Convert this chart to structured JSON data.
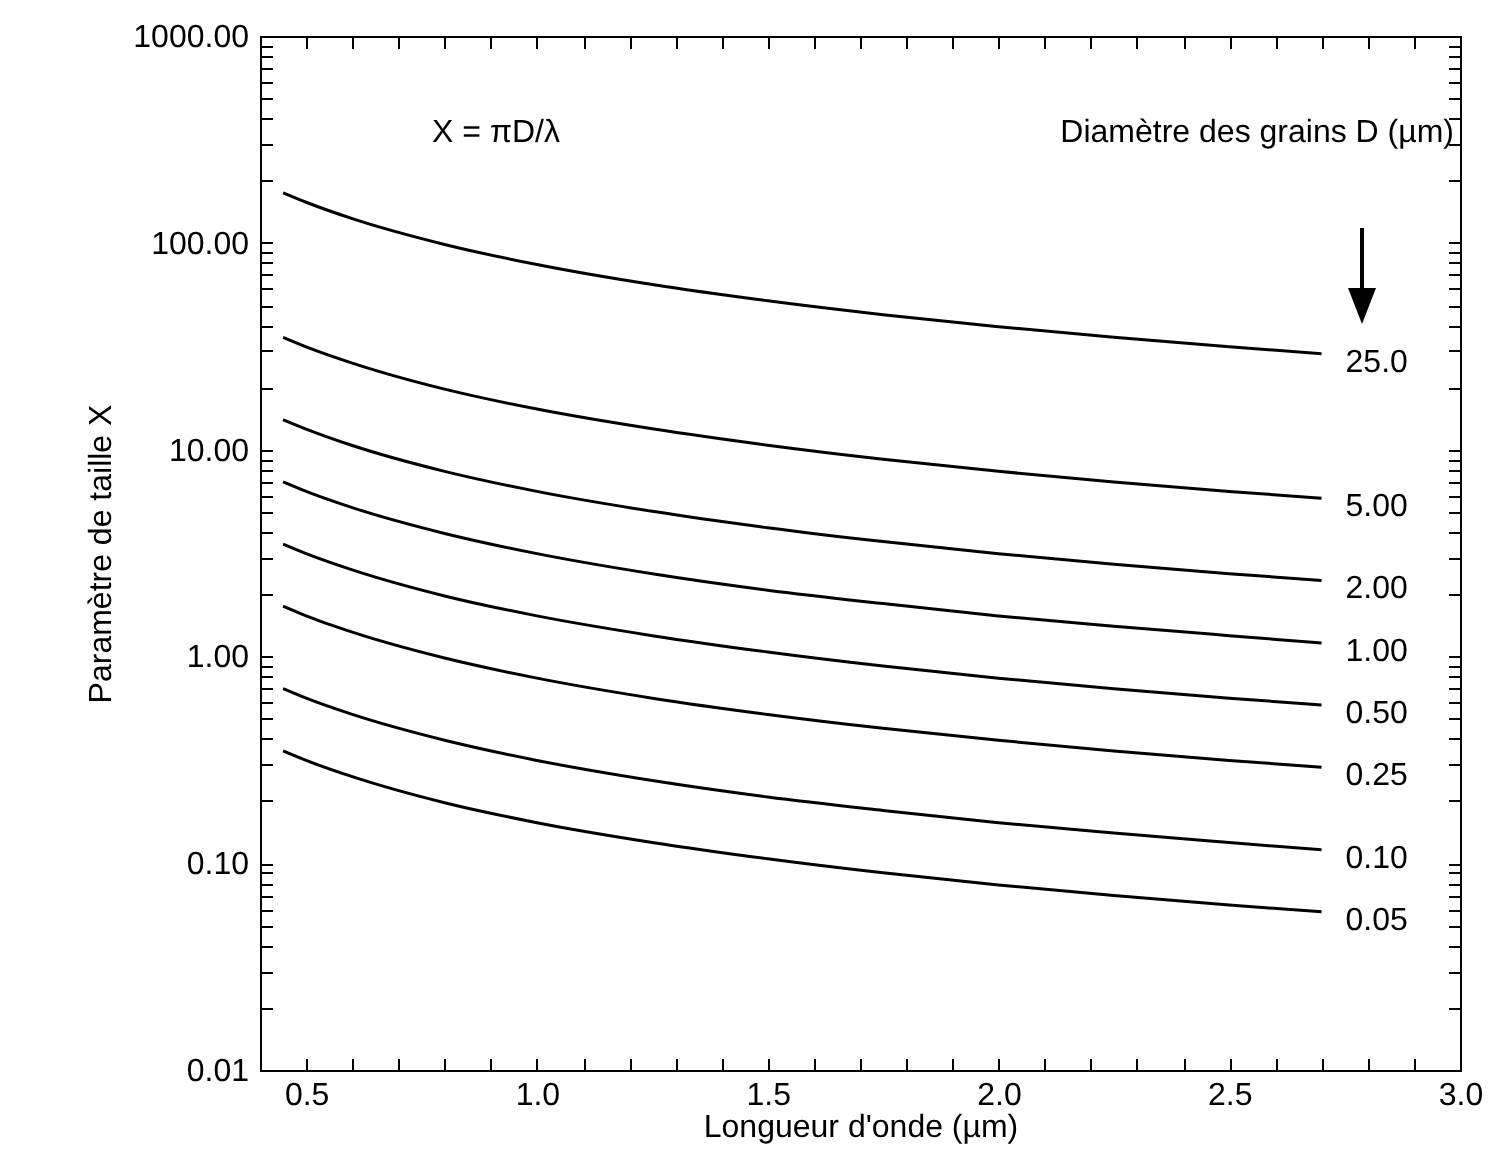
{
  "chart_data": {
    "type": "line",
    "xlabel": "Longueur d'onde (µm)",
    "ylabel": "Paramètre de taille X",
    "legend_title": "Diamètre des grains D (µm)",
    "annotations": [
      "X = πD/λ"
    ],
    "x": [
      0.45,
      0.5,
      0.6,
      0.8,
      1.0,
      1.25,
      1.5,
      1.75,
      2.0,
      2.25,
      2.5,
      2.7
    ],
    "series": [
      {
        "name": "25.0",
        "color": "#000000",
        "values": [
          174.5,
          157.1,
          130.9,
          98.2,
          78.5,
          62.8,
          52.4,
          44.9,
          39.3,
          34.9,
          31.4,
          29.1
        ]
      },
      {
        "name": "5.00",
        "color": "#000000",
        "values": [
          34.9,
          31.4,
          26.2,
          19.6,
          15.7,
          12.6,
          10.5,
          8.98,
          7.85,
          6.98,
          6.28,
          5.82
        ]
      },
      {
        "name": "2.00",
        "color": "#000000",
        "values": [
          13.96,
          12.57,
          10.47,
          7.85,
          6.28,
          5.03,
          4.19,
          3.59,
          3.14,
          2.79,
          2.51,
          2.33
        ]
      },
      {
        "name": "1.00",
        "color": "#000000",
        "values": [
          6.98,
          6.28,
          5.24,
          3.93,
          3.14,
          2.51,
          2.09,
          1.8,
          1.57,
          1.4,
          1.26,
          1.16
        ]
      },
      {
        "name": "0.50",
        "color": "#000000",
        "values": [
          3.49,
          3.14,
          2.62,
          1.96,
          1.57,
          1.26,
          1.05,
          0.898,
          0.785,
          0.698,
          0.628,
          0.582
        ]
      },
      {
        "name": "0.25",
        "color": "#000000",
        "values": [
          1.75,
          1.57,
          1.31,
          0.982,
          0.785,
          0.628,
          0.524,
          0.449,
          0.393,
          0.349,
          0.314,
          0.291
        ]
      },
      {
        "name": "0.10",
        "color": "#000000",
        "values": [
          0.698,
          0.628,
          0.524,
          0.393,
          0.314,
          0.251,
          0.209,
          0.18,
          0.157,
          0.14,
          0.126,
          0.116
        ]
      },
      {
        "name": "0.05",
        "color": "#000000",
        "values": [
          0.349,
          0.314,
          0.262,
          0.196,
          0.157,
          0.126,
          0.105,
          0.0898,
          0.0785,
          0.0698,
          0.0628,
          0.0582
        ]
      }
    ],
    "log": "y",
    "xlim": [
      0.4,
      3.0
    ],
    "ylim": [
      0.01,
      1000
    ],
    "xticks": [
      {
        "value": 0.4,
        "label": null
      },
      {
        "value": 0.5,
        "label": "0.5"
      },
      {
        "value": 0.6,
        "label": null
      },
      {
        "value": 0.7,
        "label": null
      },
      {
        "value": 0.8,
        "label": null
      },
      {
        "value": 0.9,
        "label": null
      },
      {
        "value": 1.0,
        "label": "1.0"
      },
      {
        "value": 1.1,
        "label": null
      },
      {
        "value": 1.2,
        "label": null
      },
      {
        "value": 1.3,
        "label": null
      },
      {
        "value": 1.4,
        "label": null
      },
      {
        "value": 1.5,
        "label": "1.5"
      },
      {
        "value": 1.6,
        "label": null
      },
      {
        "value": 1.7,
        "label": null
      },
      {
        "value": 1.8,
        "label": null
      },
      {
        "value": 1.9,
        "label": null
      },
      {
        "value": 2.0,
        "label": "2.0"
      },
      {
        "value": 2.1,
        "label": null
      },
      {
        "value": 2.2,
        "label": null
      },
      {
        "value": 2.3,
        "label": null
      },
      {
        "value": 2.4,
        "label": null
      },
      {
        "value": 2.5,
        "label": "2.5"
      },
      {
        "value": 2.6,
        "label": null
      },
      {
        "value": 2.7,
        "label": null
      },
      {
        "value": 2.8,
        "label": null
      },
      {
        "value": 2.9,
        "label": null
      },
      {
        "value": 3.0,
        "label": "3.0"
      }
    ],
    "yticks": [
      {
        "value": 0.01,
        "label": "0.01"
      },
      {
        "value": 0.02,
        "label": null
      },
      {
        "value": 0.03,
        "label": null
      },
      {
        "value": 0.04,
        "label": null
      },
      {
        "value": 0.05,
        "label": null
      },
      {
        "value": 0.06,
        "label": null
      },
      {
        "value": 0.07,
        "label": null
      },
      {
        "value": 0.08,
        "label": null
      },
      {
        "value": 0.09,
        "label": null
      },
      {
        "value": 0.1,
        "label": "0.10"
      },
      {
        "value": 0.2,
        "label": null
      },
      {
        "value": 0.3,
        "label": null
      },
      {
        "value": 0.4,
        "label": null
      },
      {
        "value": 0.5,
        "label": null
      },
      {
        "value": 0.6,
        "label": null
      },
      {
        "value": 0.7,
        "label": null
      },
      {
        "value": 0.8,
        "label": null
      },
      {
        "value": 0.9,
        "label": null
      },
      {
        "value": 1,
        "label": "1.00"
      },
      {
        "value": 2,
        "label": null
      },
      {
        "value": 3,
        "label": null
      },
      {
        "value": 4,
        "label": null
      },
      {
        "value": 5,
        "label": null
      },
      {
        "value": 6,
        "label": null
      },
      {
        "value": 7,
        "label": null
      },
      {
        "value": 8,
        "label": null
      },
      {
        "value": 9,
        "label": null
      },
      {
        "value": 10,
        "label": "10.00"
      },
      {
        "value": 20,
        "label": null
      },
      {
        "value": 30,
        "label": null
      },
      {
        "value": 40,
        "label": null
      },
      {
        "value": 50,
        "label": null
      },
      {
        "value": 60,
        "label": null
      },
      {
        "value": 70,
        "label": null
      },
      {
        "value": 80,
        "label": null
      },
      {
        "value": 90,
        "label": null
      },
      {
        "value": 100,
        "label": "100.00"
      },
      {
        "value": 200,
        "label": null
      },
      {
        "value": 300,
        "label": null
      },
      {
        "value": 400,
        "label": null
      },
      {
        "value": 500,
        "label": null
      },
      {
        "value": 600,
        "label": null
      },
      {
        "value": 700,
        "label": null
      },
      {
        "value": 800,
        "label": null
      },
      {
        "value": 900,
        "label": null
      },
      {
        "value": 1000,
        "label": "1000.00"
      }
    ],
    "grid": false,
    "legend": "right",
    "marker": "none",
    "line_style": "solid"
  }
}
